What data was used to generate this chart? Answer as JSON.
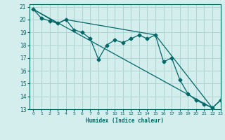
{
  "title": "",
  "xlabel": "Humidex (Indice chaleur)",
  "bg_color": "#d4eeee",
  "grid_color": "#aed4d4",
  "line_color": "#006666",
  "xlim": [
    -0.5,
    23
  ],
  "ylim": [
    13,
    21.2
  ],
  "yticks": [
    13,
    14,
    15,
    16,
    17,
    18,
    19,
    20,
    21
  ],
  "xticks": [
    0,
    1,
    2,
    3,
    4,
    5,
    6,
    7,
    8,
    9,
    10,
    11,
    12,
    13,
    14,
    15,
    16,
    17,
    18,
    19,
    20,
    21,
    22,
    23
  ],
  "line1_x": [
    0,
    1,
    2,
    3,
    4,
    5,
    6,
    7,
    8,
    9,
    10,
    11,
    12,
    13,
    14,
    15,
    16,
    17,
    18,
    19,
    20,
    21,
    22,
    23
  ],
  "line1_y": [
    20.8,
    20.1,
    19.9,
    19.7,
    20.0,
    19.2,
    19.0,
    18.5,
    16.9,
    18.0,
    18.4,
    18.2,
    18.5,
    18.8,
    18.5,
    18.8,
    16.7,
    17.0,
    15.3,
    14.2,
    13.7,
    13.4,
    13.1,
    13.7
  ],
  "line2_x": [
    0,
    22
  ],
  "line2_y": [
    20.8,
    13.1
  ],
  "line3_x": [
    0,
    3,
    4,
    15,
    22,
    23
  ],
  "line3_y": [
    20.8,
    19.7,
    20.0,
    18.8,
    13.1,
    13.7
  ]
}
